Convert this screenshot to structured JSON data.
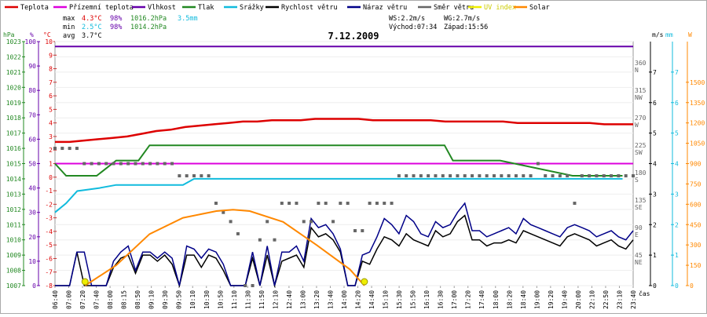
{
  "legend": [
    {
      "label": "Teplota",
      "color": "#dd0000"
    },
    {
      "label": "Přízemní teplota",
      "color": "#dd00dd"
    },
    {
      "label": "Vlhkost",
      "color": "#6600aa"
    },
    {
      "label": "Tlak",
      "color": "#228822"
    },
    {
      "label": "Srážky",
      "color": "#11bbdd"
    },
    {
      "label": "Rychlost větru",
      "color": "#000000"
    },
    {
      "label": "Náraz větru",
      "color": "#000088"
    },
    {
      "label": "Směr větru",
      "color": "#666666"
    },
    {
      "label": "UV index",
      "color": "#eeee00"
    },
    {
      "label": "Solar",
      "color": "#ff8800"
    }
  ],
  "stats": {
    "max": {
      "label": "max",
      "temp": "4.3°C",
      "hum": "98%",
      "press": "1016.2hPa",
      "rain": "3.5mm"
    },
    "min": {
      "label": "min",
      "temp": "2.5°C",
      "hum": "98%",
      "press": "1014.2hPa"
    },
    "avg": {
      "label": "avg",
      "temp": "3.7°C"
    }
  },
  "info": {
    "ws": "WS:2.2m/s",
    "wg": "WG:2.7m/s",
    "sunrise": "Východ:07:34",
    "sunset": "Západ:15:56"
  },
  "title": "7.12.2009",
  "axis_units": {
    "hpa": "hPa",
    "pct": "%",
    "degc": "°C",
    "ms": "m/s",
    "mm": "mm",
    "w": "W",
    "time": "čas"
  },
  "chart_data": {
    "type": "line",
    "title": "7.12.2009",
    "x_ticks": [
      "06:40",
      "07:00",
      "07:20",
      "07:40",
      "08:00",
      "08:15",
      "08:50",
      "09:10",
      "09:30",
      "09:50",
      "10:10",
      "10:30",
      "10:50",
      "11:10",
      "11:30",
      "11:50",
      "12:10",
      "12:40",
      "13:00",
      "13:20",
      "13:40",
      "14:00",
      "14:20",
      "14:40",
      "15:10",
      "15:30",
      "15:50",
      "16:10",
      "16:30",
      "17:00",
      "17:20",
      "17:40",
      "18:00",
      "18:20",
      "18:40",
      "19:00",
      "19:20",
      "19:40",
      "20:00",
      "22:10",
      "22:50",
      "23:10",
      "23:40"
    ],
    "axes": {
      "pressure_hpa": {
        "ticks": [
          1007,
          1008,
          1009,
          1010,
          1011,
          1012,
          1013,
          1014,
          1015,
          1016,
          1017,
          1018,
          1019,
          1020,
          1021,
          1022,
          1023
        ]
      },
      "humidity_pct": {
        "ticks": [
          0,
          10,
          20,
          30,
          40,
          50,
          60,
          70,
          80,
          90,
          100
        ]
      },
      "temperature_c": {
        "ticks": [
          -8,
          -7,
          -6,
          -5,
          -4,
          -3,
          -2,
          -1,
          0,
          1,
          2,
          3,
          4,
          5,
          6,
          7,
          8,
          9,
          10
        ]
      },
      "wind_direction": {
        "ticks": [
          "360 N",
          "315 NW",
          "270 W",
          "225 SW",
          "180 S",
          "135 SE",
          "90 E",
          "45 NE"
        ]
      },
      "wind_ms": {
        "ticks": [
          0,
          1,
          2,
          3,
          4,
          5,
          6,
          7
        ]
      },
      "rain_mm": {
        "ticks": [
          0,
          1,
          2,
          3,
          4,
          5,
          6,
          7
        ]
      },
      "solar_w": {
        "ticks": [
          0,
          150,
          300,
          450,
          600,
          750,
          900,
          1050,
          1200,
          1350,
          1500
        ]
      }
    },
    "series": [
      {
        "name": "Teplota",
        "axis": "temperature_c",
        "color": "#dd0000",
        "values": [
          2.6,
          2.6,
          2.7,
          2.8,
          2.9,
          3.0,
          3.2,
          3.4,
          3.5,
          3.7,
          3.8,
          3.9,
          4.0,
          4.1,
          4.1,
          4.2,
          4.2,
          4.2,
          4.3,
          4.3,
          4.3,
          4.3,
          4.2,
          4.2,
          4.2,
          4.2,
          4.2,
          4.1,
          4.1,
          4.1,
          4.1,
          4.1,
          4.0,
          4.0,
          4.0,
          4.0,
          4.0,
          4.0,
          3.9,
          3.9,
          3.9
        ]
      },
      {
        "name": "Přízemní teplota",
        "axis": "temperature_c",
        "color": "#dd00dd",
        "values": [
          1.0,
          1.0,
          1.0,
          1.0,
          1.0,
          1.0,
          1.0,
          1.0,
          1.0,
          1.0,
          1.0,
          1.0,
          1.0,
          1.0,
          1.0,
          1.0,
          1.0,
          1.0,
          1.0,
          1.0,
          1.0,
          1.0,
          1.0,
          1.0,
          1.0,
          1.0,
          1.0,
          1.0,
          1.0,
          1.0,
          1.0,
          1.0,
          1.0,
          1.0,
          1.0,
          1.0,
          1.0,
          1.0,
          1.0,
          1.0,
          1.0
        ]
      },
      {
        "name": "Vlhkost",
        "axis": "humidity_pct",
        "color": "#6600aa",
        "values": [
          98,
          98,
          98,
          98,
          98,
          98,
          98,
          98,
          98,
          98,
          98,
          98,
          98,
          98,
          98,
          98,
          98,
          98,
          98,
          98,
          98,
          98,
          98,
          98,
          98,
          98,
          98,
          98,
          98,
          98,
          98,
          98,
          98,
          98,
          98,
          98,
          98,
          98,
          98,
          98,
          98
        ]
      },
      {
        "name": "Tlak",
        "axis": "pressure_hpa",
        "color": "#228822",
        "x": [
          "06:40",
          "07:00",
          "07:40",
          "07:55",
          "08:30",
          "08:50",
          "09:10",
          "09:30",
          "17:00",
          "17:40",
          "18:20",
          "18:35",
          "20:00",
          "22:10",
          "22:50",
          "23:10",
          "23:40"
        ],
        "values": [
          1015.0,
          1014.2,
          1014.2,
          1014.2,
          1015.2,
          1015.2,
          1015.2,
          1016.2,
          1016.2,
          1016.2,
          1016.2,
          1015.2,
          1015.2,
          1014.2,
          1014.2,
          1014.2,
          1014.2
        ]
      },
      {
        "name": "Srážky",
        "axis": "rain_mm",
        "color": "#11bbdd",
        "x": [
          "06:40",
          "07:00",
          "07:20",
          "08:00",
          "08:30",
          "10:00",
          "10:30",
          "10:50",
          "12:00",
          "15:00",
          "18:00",
          "21:00",
          "23:40"
        ],
        "values": [
          2.4,
          2.7,
          3.1,
          3.2,
          3.3,
          3.3,
          3.3,
          3.5,
          3.5,
          3.5,
          3.5,
          3.5,
          3.5
        ]
      },
      {
        "name": "Rychlost větru",
        "axis": "wind_ms",
        "color": "#000000",
        "values": [
          0.0,
          0.0,
          0.0,
          1.1,
          0.0,
          0.0,
          0.0,
          0.0,
          0.6,
          0.9,
          1.0,
          0.4,
          1.0,
          1.0,
          0.8,
          1.0,
          0.7,
          0.0,
          1.0,
          1.0,
          0.6,
          1.0,
          0.9,
          0.5,
          0.0,
          0.0,
          0.0,
          0.9,
          0.0,
          1.0,
          0.0,
          0.8,
          0.9,
          1.0,
          0.6,
          1.9,
          1.6,
          1.7,
          1.5,
          1.1,
          0.0,
          0.0,
          0.8,
          0.7,
          1.2,
          1.6,
          1.5,
          1.3,
          1.7,
          1.5,
          1.4,
          1.3,
          1.8,
          1.6,
          1.7,
          2.1,
          2.3,
          1.5,
          1.5,
          1.3,
          1.4,
          1.4,
          1.5,
          1.4,
          1.8,
          1.7,
          1.6,
          1.5,
          1.4,
          1.3,
          1.6,
          1.7,
          1.6,
          1.5,
          1.3,
          1.4,
          1.5,
          1.3,
          1.2,
          1.5
        ]
      },
      {
        "name": "Náraz větru",
        "axis": "wind_ms",
        "color": "#000088",
        "values": [
          0.0,
          0.0,
          0.0,
          1.1,
          1.1,
          0.0,
          0.0,
          0.0,
          0.8,
          1.1,
          1.3,
          0.5,
          1.1,
          1.1,
          0.9,
          1.1,
          0.9,
          0.0,
          1.3,
          1.2,
          0.9,
          1.2,
          1.1,
          0.7,
          0.0,
          0.0,
          0.0,
          1.1,
          0.0,
          1.3,
          0.0,
          1.1,
          1.1,
          1.3,
          0.8,
          2.2,
          1.9,
          2.0,
          1.7,
          1.2,
          0.0,
          0.0,
          1.0,
          1.1,
          1.6,
          2.2,
          2.0,
          1.7,
          2.3,
          2.1,
          1.7,
          1.6,
          2.1,
          1.9,
          2.0,
          2.4,
          2.7,
          1.8,
          1.8,
          1.6,
          1.7,
          1.8,
          1.9,
          1.7,
          2.2,
          2.0,
          1.9,
          1.8,
          1.7,
          1.6,
          1.9,
          2.0,
          1.9,
          1.8,
          1.6,
          1.7,
          1.8,
          1.6,
          1.5,
          1.8
        ]
      },
      {
        "name": "Směr větru",
        "axis": "wind_direction",
        "color": "#666666",
        "values": [
          225,
          225,
          225,
          225,
          200,
          200,
          200,
          200,
          200,
          200,
          200,
          200,
          200,
          200,
          200,
          200,
          200,
          180,
          180,
          180,
          180,
          180,
          135,
          120,
          105,
          85,
          0,
          0,
          75,
          105,
          75,
          135,
          135,
          135,
          105,
          105,
          135,
          135,
          105,
          135,
          135,
          90,
          90,
          135,
          135,
          135,
          135,
          180,
          180,
          180,
          180,
          180,
          180,
          180,
          180,
          180,
          180,
          180,
          180,
          180,
          180,
          180,
          180,
          180,
          180,
          180,
          200,
          180,
          180,
          180,
          180,
          135,
          180,
          180,
          180,
          180,
          180,
          180,
          180,
          180
        ]
      },
      {
        "name": "Solar",
        "axis": "solar_w",
        "color": "#ff8800",
        "x": [
          "07:34",
          "08:30",
          "09:30",
          "10:30",
          "11:30",
          "12:00",
          "12:30",
          "13:30",
          "14:30",
          "15:30",
          "15:56"
        ],
        "values": [
          0,
          150,
          380,
          500,
          550,
          560,
          550,
          470,
          300,
          120,
          0
        ]
      }
    ],
    "markers": [
      {
        "name": "sunrise",
        "x": "07:34",
        "color": "#eeee00"
      },
      {
        "name": "sunset",
        "x": "15:56",
        "color": "#eeee00"
      }
    ]
  }
}
